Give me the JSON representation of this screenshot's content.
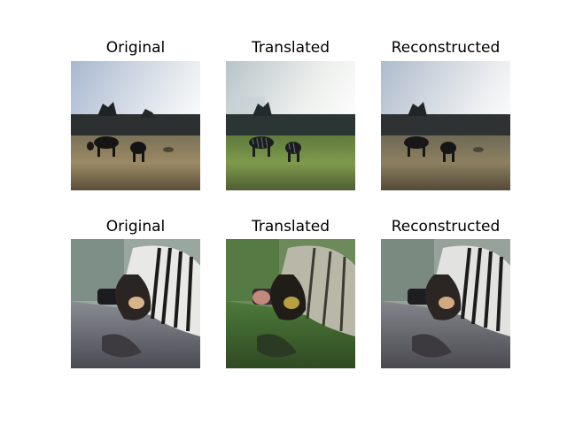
{
  "figure": {
    "rows": [
      {
        "subject": "horses in a grassy field",
        "panels": [
          {
            "title": "Original"
          },
          {
            "title": "Translated"
          },
          {
            "title": "Reconstructed"
          }
        ]
      },
      {
        "subject": "zebra leaning into a car window",
        "panels": [
          {
            "title": "Original"
          },
          {
            "title": "Translated"
          },
          {
            "title": "Reconstructed"
          }
        ]
      }
    ]
  }
}
